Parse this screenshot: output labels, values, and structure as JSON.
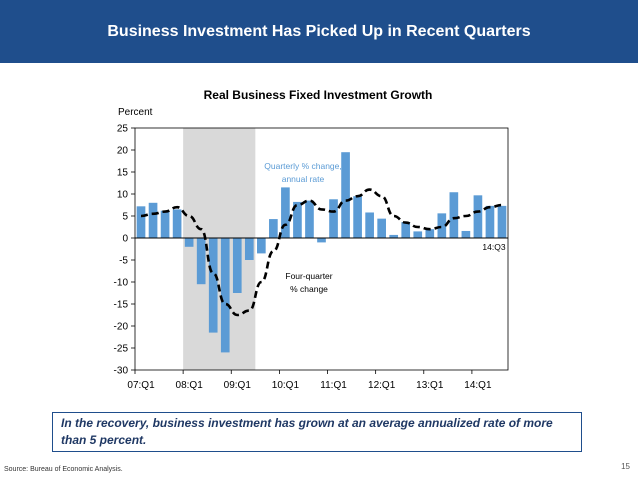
{
  "banner": {
    "title": "Business Investment Has Picked Up in Recent Quarters"
  },
  "colors": {
    "banner": "#1f4e8c",
    "bars": "#5b9bd5",
    "recession_shade": "#d9d9d9",
    "line": "#000000",
    "annotation_blue": "#5b9bd5"
  },
  "chart_data": {
    "type": "bar",
    "title": "Real Business Fixed Investment Growth",
    "ylabel": "Percent",
    "ylim": [
      -30,
      25
    ],
    "yticks": [
      25,
      20,
      15,
      10,
      5,
      0,
      -5,
      -10,
      -15,
      -20,
      -25,
      -30
    ],
    "xtick_labels": [
      "07:Q1",
      "08:Q1",
      "09:Q1",
      "10:Q1",
      "11:Q1",
      "12:Q1",
      "13:Q1",
      "14:Q1"
    ],
    "recession": {
      "start_index": 4,
      "end_index": 10
    },
    "categories": [
      "07:Q1",
      "07:Q2",
      "07:Q3",
      "07:Q4",
      "08:Q1",
      "08:Q2",
      "08:Q3",
      "08:Q4",
      "09:Q1",
      "09:Q2",
      "09:Q3",
      "09:Q4",
      "10:Q1",
      "10:Q2",
      "10:Q3",
      "10:Q4",
      "11:Q1",
      "11:Q2",
      "11:Q3",
      "11:Q4",
      "12:Q1",
      "12:Q2",
      "12:Q3",
      "12:Q4",
      "13:Q1",
      "13:Q2",
      "13:Q3",
      "13:Q4",
      "14:Q1",
      "14:Q2",
      "14:Q3"
    ],
    "series": [
      {
        "name": "Quarterly % change, annual rate",
        "kind": "bar",
        "values": [
          7.2,
          8.0,
          6.2,
          6.5,
          -2.0,
          -10.5,
          -21.5,
          -26.0,
          -12.5,
          -5.0,
          -3.5,
          4.3,
          11.5,
          8.2,
          8.5,
          -1.0,
          8.8,
          19.5,
          9.5,
          5.8,
          4.4,
          0.7,
          3.6,
          1.5,
          2.0,
          5.6,
          10.4,
          1.6,
          9.7,
          7.3,
          7.3
        ]
      },
      {
        "name": "Four-quarter % change",
        "kind": "line",
        "values": [
          5.0,
          5.5,
          6.0,
          7.0,
          5.0,
          2.0,
          -8.0,
          -15.0,
          -17.5,
          -16.5,
          -10.0,
          -3.0,
          3.0,
          7.5,
          8.5,
          6.5,
          6.0,
          8.5,
          9.5,
          11.0,
          9.5,
          5.0,
          3.5,
          2.5,
          2.0,
          2.5,
          4.5,
          5.0,
          6.0,
          7.0,
          7.5
        ]
      }
    ],
    "annotations": [
      {
        "text_lines": [
          "Quarterly % change,",
          "annual rate"
        ],
        "color": "#5b9bd5"
      },
      {
        "text_lines": [
          "Four-quarter",
          "% change"
        ],
        "color": "#000000"
      },
      {
        "text": "14:Q3",
        "color": "#000000"
      }
    ]
  },
  "callout": {
    "text": "In the recovery, business investment has grown at an average annualized rate of more than 5 percent."
  },
  "footer": {
    "source": "Source: Bureau of Economic Analysis.",
    "page_number": "15"
  }
}
